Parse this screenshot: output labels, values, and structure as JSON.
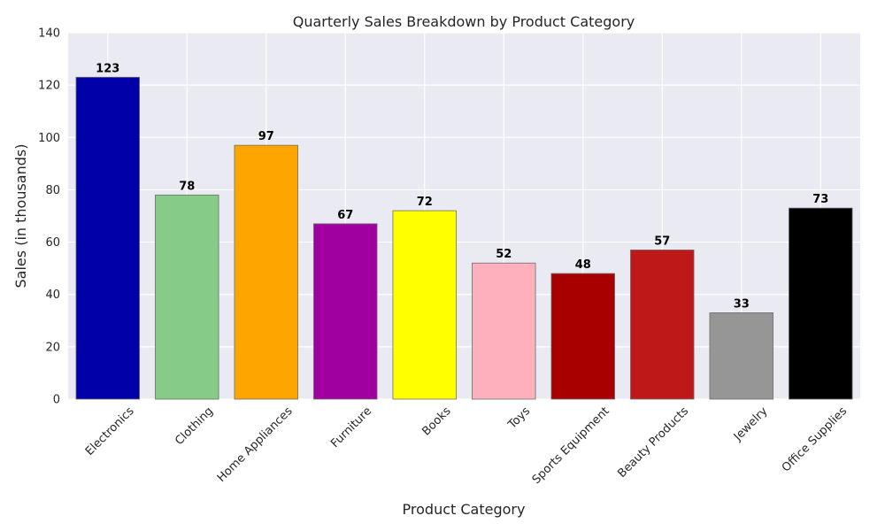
{
  "chart_data": {
    "type": "bar",
    "title": "Quarterly Sales Breakdown by Product Category",
    "xlabel": "Product Category",
    "ylabel": "Sales (in thousands)",
    "categories": [
      "Electronics",
      "Clothing",
      "Home Appliances",
      "Furniture",
      "Books",
      "Toys",
      "Sports Equipment",
      "Beauty Products",
      "Jewelry",
      "Office Supplies"
    ],
    "values": [
      123,
      78,
      97,
      67,
      72,
      52,
      48,
      57,
      33,
      73
    ],
    "colors": [
      "#0000a8",
      "#86cb86",
      "#ffa500",
      "#a000a0",
      "#ffff00",
      "#ffb0bd",
      "#a80000",
      "#bf1818",
      "#969696",
      "#000000"
    ],
    "ylim": [
      0,
      140
    ],
    "yticks": [
      0,
      20,
      40,
      60,
      80,
      100,
      120,
      140
    ],
    "grid": true,
    "legend": "none",
    "show_data_labels": true
  }
}
